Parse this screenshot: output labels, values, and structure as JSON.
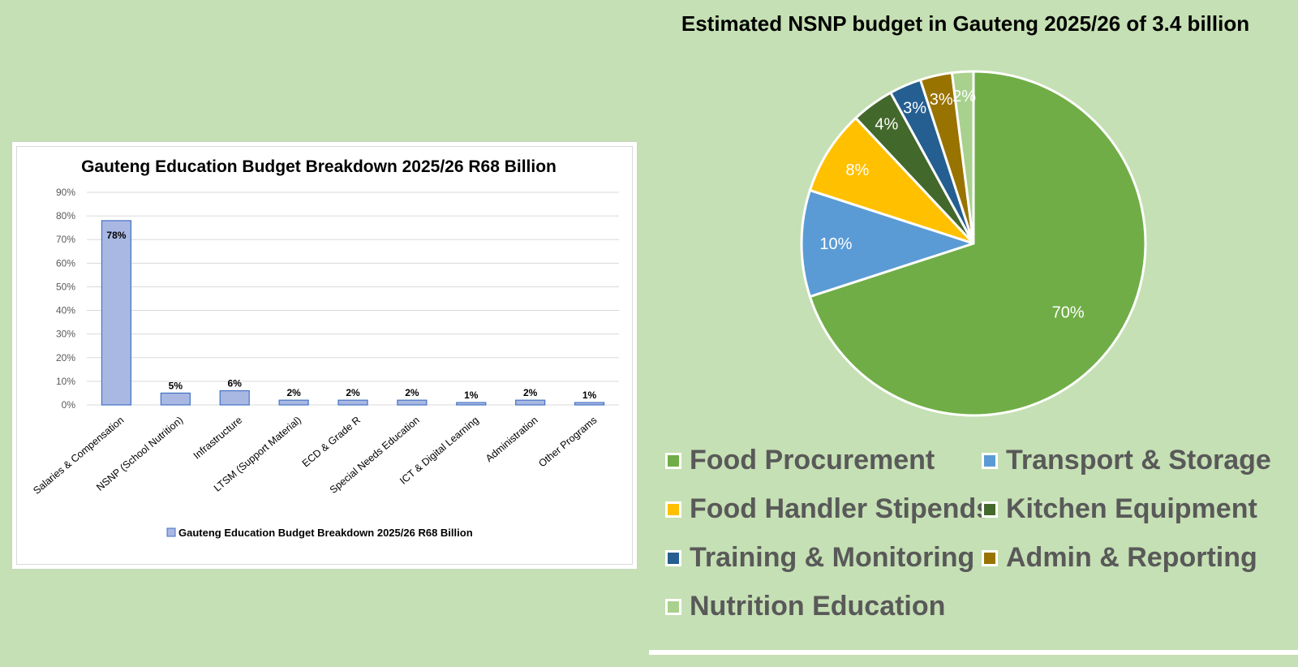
{
  "chart_data": [
    {
      "type": "bar",
      "title": "Gauteng  Education Budget Breakdown 2025/26 R68 Billion",
      "xlabel": "",
      "ylabel": "",
      "categories": [
        "Salaries & Compensation",
        "NSNP (School Nutrition)",
        "Infrastructure",
        "LTSM (Support Material)",
        "ECD & Grade R",
        "Special Needs Education",
        "ICT & Digital Learning",
        "Administration",
        "Other Programs"
      ],
      "series": [
        {
          "name": "Gauteng  Education Budget Breakdown 2025/26 R68 Billion",
          "values": [
            78,
            5,
            6,
            2,
            2,
            2,
            1,
            2,
            1
          ],
          "labels": [
            "78%",
            "5%",
            "6%",
            "2%",
            "2%",
            "2%",
            "1%",
            "2%",
            "1%"
          ]
        }
      ],
      "ylim": [
        0,
        90
      ],
      "yticks": [
        "0%",
        "10%",
        "20%",
        "30%",
        "40%",
        "50%",
        "60%",
        "70%",
        "80%",
        "90%"
      ],
      "grid": true,
      "legend": "bottom",
      "colors": {
        "bar_fill": "#a9b8e3",
        "bar_stroke": "#4472c4",
        "grid": "#d9d9d9",
        "tick_text": "#595959"
      }
    },
    {
      "type": "pie",
      "title": "Estimated NSNP budget in Gauteng 2025/26 of 3.4 billion",
      "slices": [
        {
          "label": "Food Procurement",
          "value": 70,
          "text": "70%",
          "color": "#70ad47"
        },
        {
          "label": "Transport & Storage",
          "value": 10,
          "text": "10%",
          "color": "#5b9bd5"
        },
        {
          "label": "Food Handler Stipends",
          "value": 8,
          "text": "8%",
          "color": "#ffc000"
        },
        {
          "label": "Kitchen Equipment",
          "value": 4,
          "text": "4%",
          "color": "#43682b"
        },
        {
          "label": "Training & Monitoring",
          "value": 3,
          "text": "3%",
          "color": "#255e91"
        },
        {
          "label": "Admin & Reporting",
          "value": 3,
          "text": "3%",
          "color": "#997300"
        },
        {
          "label": "Nutrition Education",
          "value": 2,
          "text": "2%",
          "color": "#a9d18e"
        }
      ],
      "legend": "bottom",
      "start": "12 o'clock, clockwise"
    }
  ]
}
